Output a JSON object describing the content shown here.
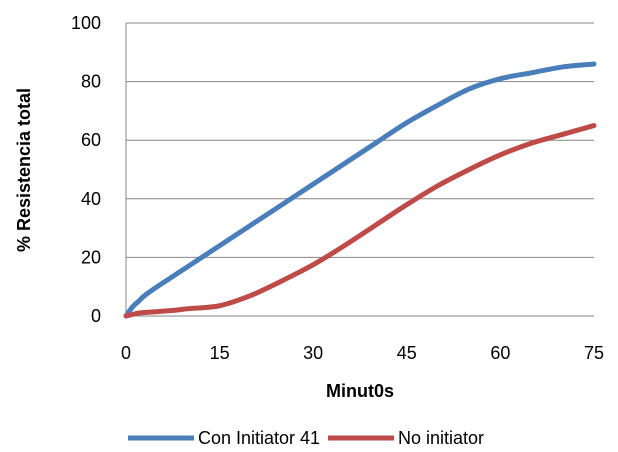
{
  "chart_data": {
    "type": "line",
    "title": "",
    "xlabel": "Minut0s",
    "ylabel": "% Resistencia total",
    "xlim": [
      0,
      75
    ],
    "ylim": [
      0,
      100
    ],
    "xticks": [
      0,
      15,
      30,
      45,
      60,
      75
    ],
    "yticks": [
      0,
      20,
      40,
      60,
      80,
      100
    ],
    "grid": "horizontal",
    "legend_position": "bottom",
    "series": [
      {
        "name": "Con Initiator 41",
        "color": "#4a7ebb",
        "x": [
          0,
          1,
          2,
          3,
          5,
          10,
          15,
          20,
          25,
          30,
          35,
          40,
          45,
          50,
          55,
          60,
          65,
          70,
          75
        ],
        "y": [
          0,
          3,
          5,
          7,
          10,
          17,
          24,
          31,
          38,
          45,
          52,
          59,
          66,
          72,
          77.5,
          81,
          83,
          85,
          86
        ]
      },
      {
        "name": "No initiator",
        "color": "#be4b48",
        "x": [
          0,
          1,
          2,
          3,
          5,
          8,
          10,
          15,
          20,
          25,
          30,
          35,
          40,
          45,
          50,
          55,
          60,
          65,
          70,
          75
        ],
        "y": [
          0,
          0.5,
          1,
          1.2,
          1.5,
          2,
          2.5,
          3.5,
          7,
          12,
          17.5,
          24,
          31,
          38,
          44.5,
          50,
          55,
          59,
          62,
          65
        ]
      }
    ]
  }
}
